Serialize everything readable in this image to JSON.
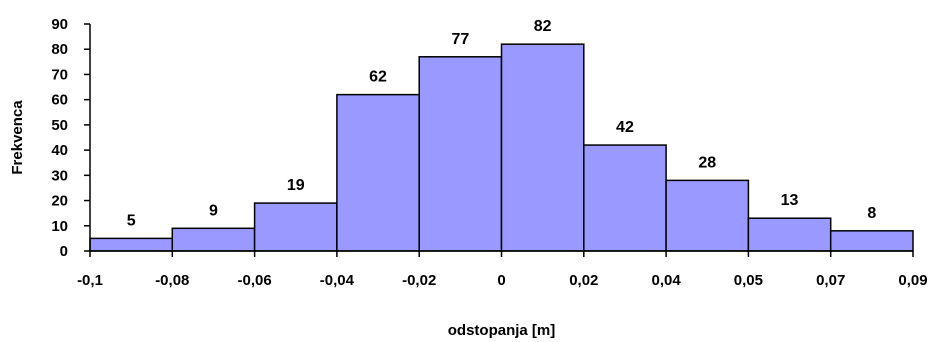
{
  "chart_data": {
    "type": "bar",
    "title": "",
    "xlabel": "odstopanja [m]",
    "ylabel": "Frekvenca",
    "x_tick_labels": [
      "-0,1",
      "-0,08",
      "-0,06",
      "-0,04",
      "-0,02",
      "0",
      "0,02",
      "0,04",
      "0,05",
      "0,07",
      "0,09"
    ],
    "y_tick_labels": [
      "0",
      "10",
      "20",
      "30",
      "40",
      "50",
      "60",
      "70",
      "80",
      "90"
    ],
    "values": [
      5,
      9,
      19,
      62,
      77,
      82,
      42,
      28,
      13,
      8
    ],
    "ylim": [
      0,
      90
    ],
    "grid": false,
    "bar_color": "#9999ff",
    "bar_edge_color": "#000000"
  }
}
